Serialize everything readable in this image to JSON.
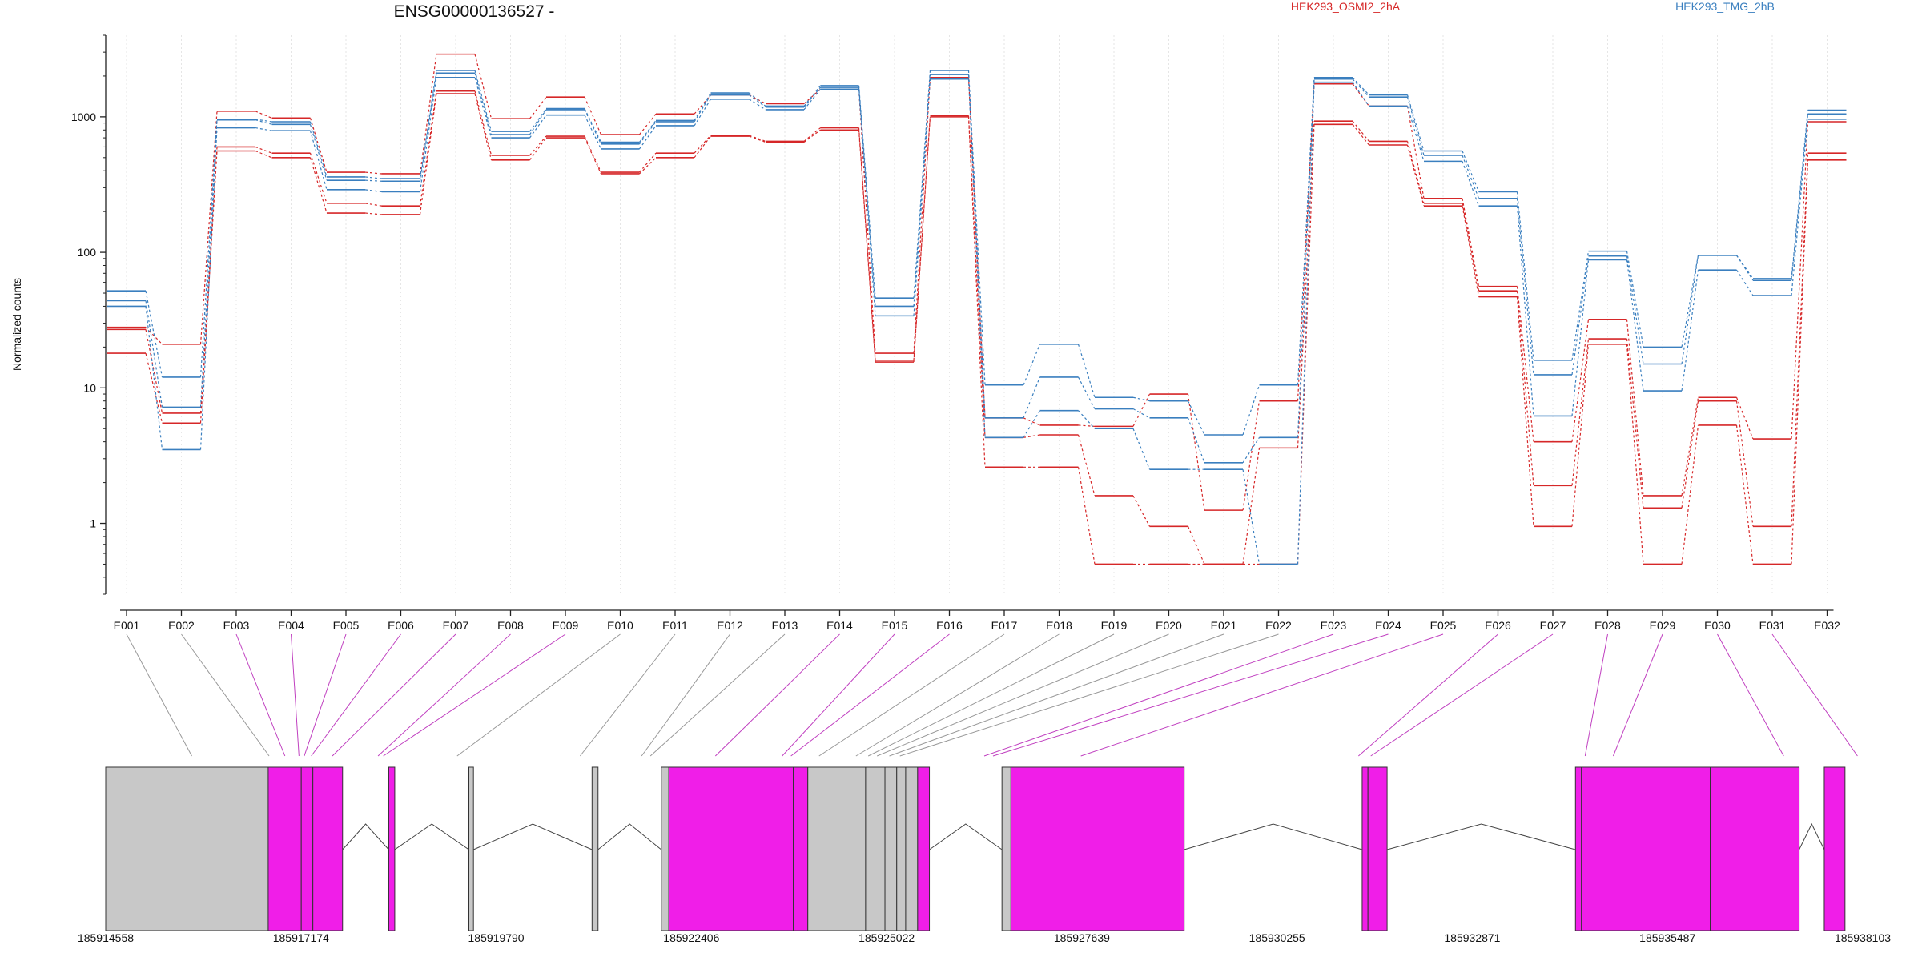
{
  "chart_data": {
    "type": "line",
    "title": "ENSG00000136527 -",
    "ylabel": "Normalized counts",
    "yscale": "log",
    "ylim": [
      0.3,
      4000
    ],
    "yticks": [
      1,
      10,
      100,
      1000
    ],
    "ytick_labels": [
      "1",
      "10",
      "100",
      "1000"
    ],
    "categories": [
      "E001",
      "E002",
      "E003",
      "E004",
      "E005",
      "E006",
      "E007",
      "E008",
      "E009",
      "E010",
      "E011",
      "E012",
      "E013",
      "E014",
      "E015",
      "E016",
      "E017",
      "E018",
      "E019",
      "E020",
      "E021",
      "E022",
      "E023",
      "E024",
      "E025",
      "E026",
      "E027",
      "E028",
      "E029",
      "E030",
      "E031",
      "E032"
    ],
    "groups": [
      {
        "name": "HEK293_OSMI2_2hA",
        "color": "#d62728"
      },
      {
        "name": "HEK293_TMG_2hB",
        "color": "#3a7fbf"
      }
    ],
    "series": [
      {
        "group": 0,
        "values": [
          28,
          21,
          1100,
          980,
          390,
          380,
          2900,
          970,
          1400,
          740,
          1050,
          1450,
          1250,
          1600,
          18,
          1950,
          6,
          5.3,
          5.2,
          9,
          1.25,
          8,
          1750,
          1200,
          250,
          56,
          4,
          32,
          1.6,
          8.5,
          4.2,
          920
        ]
      },
      {
        "group": 0,
        "values": [
          27,
          6.5,
          600,
          540,
          230,
          220,
          1550,
          520,
          720,
          390,
          540,
          730,
          660,
          830,
          16,
          1020,
          4.3,
          4.5,
          1.6,
          0.95,
          0.5,
          3.6,
          930,
          660,
          230,
          52,
          1.9,
          23,
          1.3,
          8,
          0.95,
          540
        ]
      },
      {
        "group": 0,
        "values": [
          18,
          5.5,
          560,
          500,
          195,
          190,
          1480,
          480,
          700,
          380,
          500,
          720,
          650,
          800,
          15.5,
          1000,
          2.6,
          2.6,
          0.5,
          0.5,
          0.5,
          0.5,
          880,
          620,
          220,
          47,
          0.95,
          21,
          0.5,
          5.3,
          0.5,
          480
        ]
      },
      {
        "group": 1,
        "values": [
          52,
          12,
          960,
          920,
          360,
          350,
          2200,
          780,
          1150,
          650,
          940,
          1500,
          1200,
          1700,
          46,
          2200,
          10.5,
          21,
          8.5,
          8,
          4.5,
          10.5,
          1950,
          1450,
          560,
          280,
          16,
          102,
          20,
          95,
          64,
          1120
        ]
      },
      {
        "group": 1,
        "values": [
          44,
          7.2,
          950,
          880,
          340,
          335,
          2100,
          740,
          1130,
          630,
          920,
          1450,
          1180,
          1650,
          40,
          2050,
          6,
          12,
          7,
          6,
          2.8,
          4.3,
          1900,
          1400,
          520,
          250,
          12.5,
          94,
          15,
          95,
          62,
          1050
        ]
      },
      {
        "group": 1,
        "values": [
          40,
          3.5,
          830,
          790,
          290,
          280,
          1950,
          700,
          1030,
          580,
          860,
          1350,
          1130,
          1600,
          34,
          1900,
          4.3,
          6.8,
          5,
          2.5,
          2.5,
          0.5,
          1800,
          1200,
          470,
          220,
          6.2,
          88,
          9.5,
          74,
          48,
          960
        ]
      }
    ],
    "connectors": [
      {
        "exon": 1,
        "gene_x": 0.049,
        "color": "#999999"
      },
      {
        "exon": 2,
        "gene_x": 0.093,
        "color": "#999999"
      },
      {
        "exon": 3,
        "gene_x": 0.102,
        "color": "#c040c0"
      },
      {
        "exon": 4,
        "gene_x": 0.11,
        "color": "#c040c0"
      },
      {
        "exon": 5,
        "gene_x": 0.113,
        "color": "#c040c0"
      },
      {
        "exon": 6,
        "gene_x": 0.117,
        "color": "#c040c0"
      },
      {
        "exon": 7,
        "gene_x": 0.129,
        "color": "#c040c0"
      },
      {
        "exon": 8,
        "gene_x": 0.155,
        "color": "#c040c0"
      },
      {
        "exon": 9,
        "gene_x": 0.158,
        "color": "#c040c0"
      },
      {
        "exon": 10,
        "gene_x": 0.2,
        "color": "#999999"
      },
      {
        "exon": 11,
        "gene_x": 0.27,
        "color": "#999999"
      },
      {
        "exon": 12,
        "gene_x": 0.305,
        "color": "#999999"
      },
      {
        "exon": 13,
        "gene_x": 0.31,
        "color": "#999999"
      },
      {
        "exon": 14,
        "gene_x": 0.347,
        "color": "#c040c0"
      },
      {
        "exon": 15,
        "gene_x": 0.385,
        "color": "#c040c0"
      },
      {
        "exon": 16,
        "gene_x": 0.39,
        "color": "#c040c0"
      },
      {
        "exon": 17,
        "gene_x": 0.406,
        "color": "#999999"
      },
      {
        "exon": 18,
        "gene_x": 0.427,
        "color": "#999999"
      },
      {
        "exon": 19,
        "gene_x": 0.434,
        "color": "#999999"
      },
      {
        "exon": 20,
        "gene_x": 0.439,
        "color": "#999999"
      },
      {
        "exon": 21,
        "gene_x": 0.446,
        "color": "#999999"
      },
      {
        "exon": 22,
        "gene_x": 0.452,
        "color": "#999999"
      },
      {
        "exon": 23,
        "gene_x": 0.5,
        "color": "#c040c0"
      },
      {
        "exon": 24,
        "gene_x": 0.505,
        "color": "#c040c0"
      },
      {
        "exon": 25,
        "gene_x": 0.555,
        "color": "#c040c0"
      },
      {
        "exon": 26,
        "gene_x": 0.713,
        "color": "#c040c0"
      },
      {
        "exon": 27,
        "gene_x": 0.72,
        "color": "#c040c0"
      },
      {
        "exon": 28,
        "gene_x": 0.842,
        "color": "#c040c0"
      },
      {
        "exon": 29,
        "gene_x": 0.858,
        "color": "#c040c0"
      },
      {
        "exon": 30,
        "gene_x": 0.955,
        "color": "#c040c0"
      },
      {
        "exon": 31,
        "gene_x": 0.997,
        "color": "#c040c0"
      }
    ],
    "gene_model": {
      "coordinate_labels": [
        "185914558",
        "185917174",
        "185919790",
        "185922406",
        "185925022",
        "185927639",
        "185930255",
        "185932871",
        "185935487",
        "185938103"
      ],
      "exon_colors": {
        "coding": "#f01ee8",
        "noncoding": "#c8c8c8"
      },
      "blocks": [
        {
          "start": 0.0,
          "end": 0.0925,
          "kind": "noncoding"
        },
        {
          "start": 0.0925,
          "end": 0.1113,
          "kind": "coding"
        },
        {
          "start": 0.1113,
          "end": 0.1179,
          "kind": "coding"
        },
        {
          "start": 0.1179,
          "end": 0.1348,
          "kind": "coding"
        },
        {
          "start": 0.1611,
          "end": 0.1645,
          "kind": "coding"
        },
        {
          "start": 0.2067,
          "end": 0.2093,
          "kind": "noncoding"
        },
        {
          "start": 0.2768,
          "end": 0.2802,
          "kind": "noncoding"
        },
        {
          "start": 0.3162,
          "end": 0.3205,
          "kind": "noncoding"
        },
        {
          "start": 0.3205,
          "end": 0.3913,
          "kind": "coding"
        },
        {
          "start": 0.3913,
          "end": 0.3996,
          "kind": "coding"
        },
        {
          "start": 0.3996,
          "end": 0.4325,
          "kind": "noncoding"
        },
        {
          "start": 0.4325,
          "end": 0.4435,
          "kind": "noncoding"
        },
        {
          "start": 0.4435,
          "end": 0.4502,
          "kind": "noncoding"
        },
        {
          "start": 0.4502,
          "end": 0.4553,
          "kind": "noncoding"
        },
        {
          "start": 0.4553,
          "end": 0.4621,
          "kind": "noncoding"
        },
        {
          "start": 0.4621,
          "end": 0.4688,
          "kind": "coding"
        },
        {
          "start": 0.5101,
          "end": 0.5152,
          "kind": "noncoding"
        },
        {
          "start": 0.5152,
          "end": 0.6138,
          "kind": "coding"
        },
        {
          "start": 0.7151,
          "end": 0.7184,
          "kind": "coding"
        },
        {
          "start": 0.7184,
          "end": 0.7293,
          "kind": "coding"
        },
        {
          "start": 0.8365,
          "end": 0.8399,
          "kind": "coding"
        },
        {
          "start": 0.8399,
          "end": 0.9132,
          "kind": "coding"
        },
        {
          "start": 0.9132,
          "end": 0.9638,
          "kind": "coding"
        },
        {
          "start": 0.9781,
          "end": 0.9899,
          "kind": "coding"
        }
      ]
    }
  }
}
